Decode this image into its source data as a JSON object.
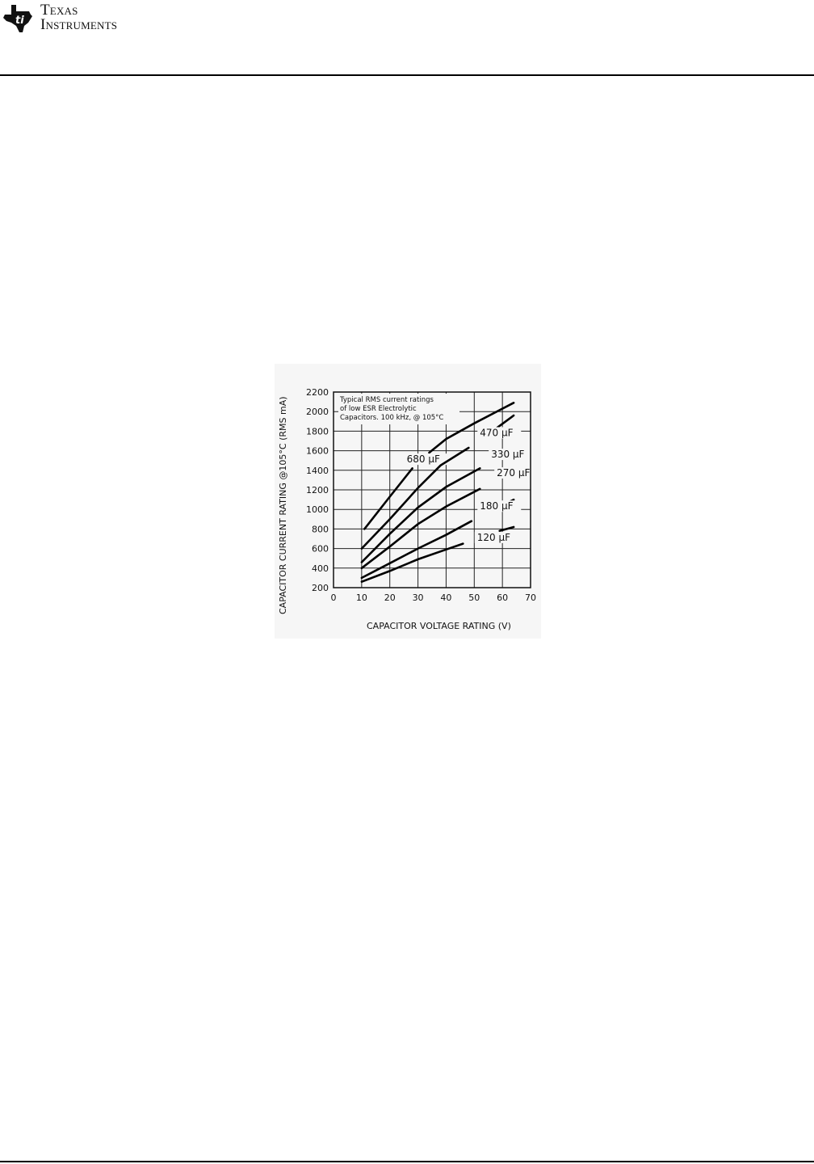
{
  "header": {
    "logo_line1": "Texas",
    "logo_line2": "Instruments"
  },
  "chart_data": {
    "type": "line",
    "xlabel": "CAPACITOR VOLTAGE RATING (V)",
    "ylabel": "CAPACITOR CURRENT RATING @105°C (RMS mA)",
    "xlim": [
      0,
      70
    ],
    "ylim": [
      200,
      2200
    ],
    "xticks": [
      "0",
      "10",
      "20",
      "30",
      "40",
      "50",
      "60",
      "70"
    ],
    "yticks": [
      "200",
      "400",
      "600",
      "800",
      "1000",
      "1200",
      "1400",
      "1600",
      "1800",
      "2000",
      "2200"
    ],
    "grid": true,
    "annotation": [
      "Typical RMS current ratings",
      "of low ESR Electrolytic",
      "Capacitors. 100 kHz, @ 105°C"
    ],
    "series": [
      {
        "name": "680 µF",
        "segments": [
          [
            [
              11,
              800
            ],
            [
              20,
              1130
            ],
            [
              28,
              1420
            ]
          ],
          [
            [
              34,
              1580
            ],
            [
              40,
              1720
            ],
            [
              50,
              1880
            ],
            [
              64,
              2090
            ]
          ]
        ]
      },
      {
        "name": "470 µF",
        "segments": [
          [
            [
              10,
              600
            ],
            [
              20,
              900
            ],
            [
              30,
              1220
            ],
            [
              38,
              1450
            ],
            [
              48,
              1630
            ]
          ],
          [
            [
              56,
              1790
            ],
            [
              64,
              1960
            ]
          ]
        ]
      },
      {
        "name": "330 µF",
        "segments": [
          [
            [
              10,
              460
            ],
            [
              20,
              750
            ],
            [
              30,
              1020
            ],
            [
              40,
              1230
            ],
            [
              52,
              1420
            ]
          ],
          [
            [
              62,
              1580
            ],
            [
              64,
              1600
            ]
          ]
        ]
      },
      {
        "name": "270 µF",
        "segments": [
          [
            [
              10,
              400
            ],
            [
              20,
              620
            ],
            [
              30,
              850
            ],
            [
              40,
              1030
            ],
            [
              52,
              1210
            ]
          ],
          [
            [
              60,
              1360
            ],
            [
              64,
              1410
            ]
          ]
        ]
      },
      {
        "name": "180 µF",
        "segments": [
          [
            [
              10,
              300
            ],
            [
              20,
              450
            ],
            [
              30,
              600
            ],
            [
              40,
              740
            ],
            [
              49,
              880
            ]
          ],
          [
            [
              60,
              1040
            ],
            [
              64,
              1100
            ]
          ]
        ]
      },
      {
        "name": "120 µF",
        "segments": [
          [
            [
              10,
              260
            ],
            [
              20,
              370
            ],
            [
              30,
              490
            ],
            [
              40,
              590
            ],
            [
              46,
              650
            ]
          ],
          [
            [
              59,
              780
            ],
            [
              64,
              820
            ]
          ]
        ]
      }
    ]
  }
}
